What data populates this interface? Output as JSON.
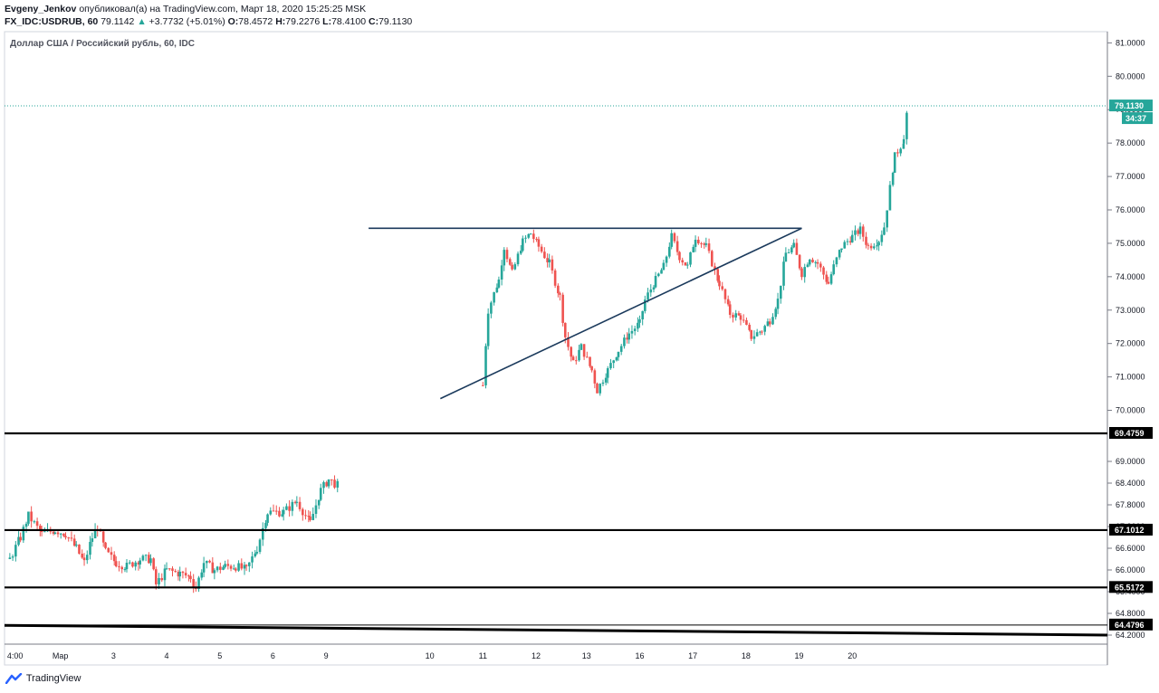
{
  "header": {
    "author": "Evgeny_Jenkov",
    "published_text": "опубликовал(а) на TradingView.com, Март 18, 2020 15:25:25 MSK",
    "symbol": "FX_IDC:USDRUB, 60",
    "last": "79.1142",
    "change_arrow": "▲",
    "change": "+3.7732 (+5.01%)",
    "o_label": "O:",
    "o_value": "78.4572",
    "h_label": "H:",
    "h_value": "79.2276",
    "l_label": "L:",
    "l_value": "78.4100",
    "c_label": "C:",
    "c_value": "79.1130"
  },
  "footer": {
    "brand": "TradingView",
    "logo_icon": "tradingview-logo-icon"
  },
  "colors": {
    "up": "#26a69a",
    "down": "#ef5350",
    "trendline": "#1b3a5c",
    "level": "#000000",
    "price_tag": "#26a69a",
    "grid_border": "#787b86"
  },
  "chart_data": [
    {
      "type": "candlestick",
      "title": "Доллар США / Российский рубль, 60, IDC",
      "ylim": [
        69.5,
        81.2
      ],
      "y_ticks": [
        "81.0000",
        "80.0000",
        "79.0000",
        "78.0000",
        "77.0000",
        "76.0000",
        "75.0000",
        "74.0000",
        "73.0000",
        "72.0000",
        "71.0000",
        "70.0000"
      ],
      "x_ticks": [
        "9",
        "10",
        "11",
        "12",
        "13",
        "16",
        "17",
        "18",
        "19",
        "20"
      ],
      "x_range": [
        8.55,
        20.75
      ],
      "series_anchors": [
        [
          9.0,
          70.75
        ],
        [
          9.1,
          73.0
        ],
        [
          9.3,
          73.9
        ],
        [
          9.4,
          74.9
        ],
        [
          9.55,
          74.1
        ],
        [
          9.75,
          75.05
        ],
        [
          9.9,
          75.3
        ],
        [
          10.05,
          74.9
        ],
        [
          10.25,
          74.4
        ],
        [
          10.45,
          73.4
        ],
        [
          10.55,
          72.2
        ],
        [
          10.7,
          71.4
        ],
        [
          10.85,
          71.9
        ],
        [
          11.05,
          71.2
        ],
        [
          11.15,
          70.6
        ],
        [
          11.35,
          71.2
        ],
        [
          11.55,
          71.8
        ],
        [
          11.75,
          72.3
        ],
        [
          11.95,
          72.6
        ],
        [
          12.05,
          73.3
        ],
        [
          12.25,
          73.9
        ],
        [
          12.4,
          74.3
        ],
        [
          12.55,
          75.2
        ],
        [
          12.7,
          74.6
        ],
        [
          12.85,
          74.3
        ],
        [
          13.0,
          75.2
        ],
        [
          13.2,
          74.9
        ],
        [
          13.45,
          73.8
        ],
        [
          13.65,
          72.9
        ],
        [
          13.85,
          72.8
        ],
        [
          14.05,
          72.2
        ],
        [
          14.25,
          72.4
        ],
        [
          14.4,
          72.7
        ],
        [
          14.55,
          73.3
        ],
        [
          14.7,
          74.7
        ],
        [
          14.85,
          74.9
        ],
        [
          15.0,
          74.1
        ],
        [
          15.15,
          74.6
        ],
        [
          15.3,
          74.4
        ],
        [
          15.5,
          73.8
        ],
        [
          15.6,
          74.3
        ],
        [
          15.75,
          74.9
        ],
        [
          15.95,
          75.2
        ],
        [
          16.1,
          75.4
        ],
        [
          16.25,
          74.9
        ],
        [
          16.45,
          75.1
        ],
        [
          16.55,
          75.5
        ],
        [
          16.75,
          77.6
        ],
        [
          16.92,
          78.1
        ],
        [
          17.0,
          79.11
        ]
      ],
      "last_price": "79.1130",
      "countdown": "34:37",
      "resistance_line": {
        "x1": 9.85,
        "y1": 75.45,
        "x2": 20.2,
        "y2": 75.45
      },
      "support_line": {
        "x1": 11.2,
        "y1": 70.35,
        "x2": 20.2,
        "y2": 75.45
      }
    },
    {
      "type": "candlestick",
      "ylim": [
        64.1,
        69.6
      ],
      "y_ticks": [
        "69.0000",
        "68.4000",
        "67.8000",
        "67.2000",
        "66.6000",
        "66.0000",
        "65.4000",
        "64.8000",
        "64.2000"
      ],
      "x_ticks": [
        "4:00",
        "Мар",
        "3",
        "4",
        "5",
        "6",
        "9"
      ],
      "x_range": [
        0.0,
        8.55
      ],
      "series_anchors": [
        [
          0.1,
          66.3
        ],
        [
          0.3,
          66.9
        ],
        [
          0.45,
          67.5
        ],
        [
          0.7,
          67.0
        ],
        [
          0.95,
          67.1
        ],
        [
          1.15,
          67.0
        ],
        [
          1.35,
          66.6
        ],
        [
          1.5,
          66.2
        ],
        [
          1.65,
          66.9
        ],
        [
          1.75,
          67.2
        ],
        [
          1.9,
          66.5
        ],
        [
          2.1,
          66.2
        ],
        [
          2.3,
          66.1
        ],
        [
          2.55,
          66.3
        ],
        [
          2.75,
          66.3
        ],
        [
          2.85,
          65.6
        ],
        [
          3.05,
          66.0
        ],
        [
          3.3,
          65.9
        ],
        [
          3.5,
          65.8
        ],
        [
          3.6,
          65.5
        ],
        [
          3.75,
          66.2
        ],
        [
          3.95,
          66.0
        ],
        [
          4.15,
          66.1
        ],
        [
          4.35,
          66.1
        ],
        [
          4.55,
          66.0
        ],
        [
          4.75,
          66.6
        ],
        [
          4.95,
          67.6
        ],
        [
          5.25,
          67.6
        ],
        [
          5.5,
          67.9
        ],
        [
          5.75,
          67.3
        ],
        [
          5.95,
          68.2
        ],
        [
          6.1,
          68.5
        ],
        [
          6.3,
          68.3
        ]
      ],
      "levels": [
        {
          "value": 69.4759,
          "label": "69.4759"
        },
        {
          "value": 67.1012,
          "label": "67.1012"
        },
        {
          "value": 65.5172,
          "label": "65.5172"
        },
        {
          "value": 64.4796,
          "label": "64.4796"
        }
      ],
      "descending_line": {
        "x1": 0.0,
        "y1": 64.47,
        "x2": 20.75,
        "y2": 64.2
      }
    }
  ]
}
